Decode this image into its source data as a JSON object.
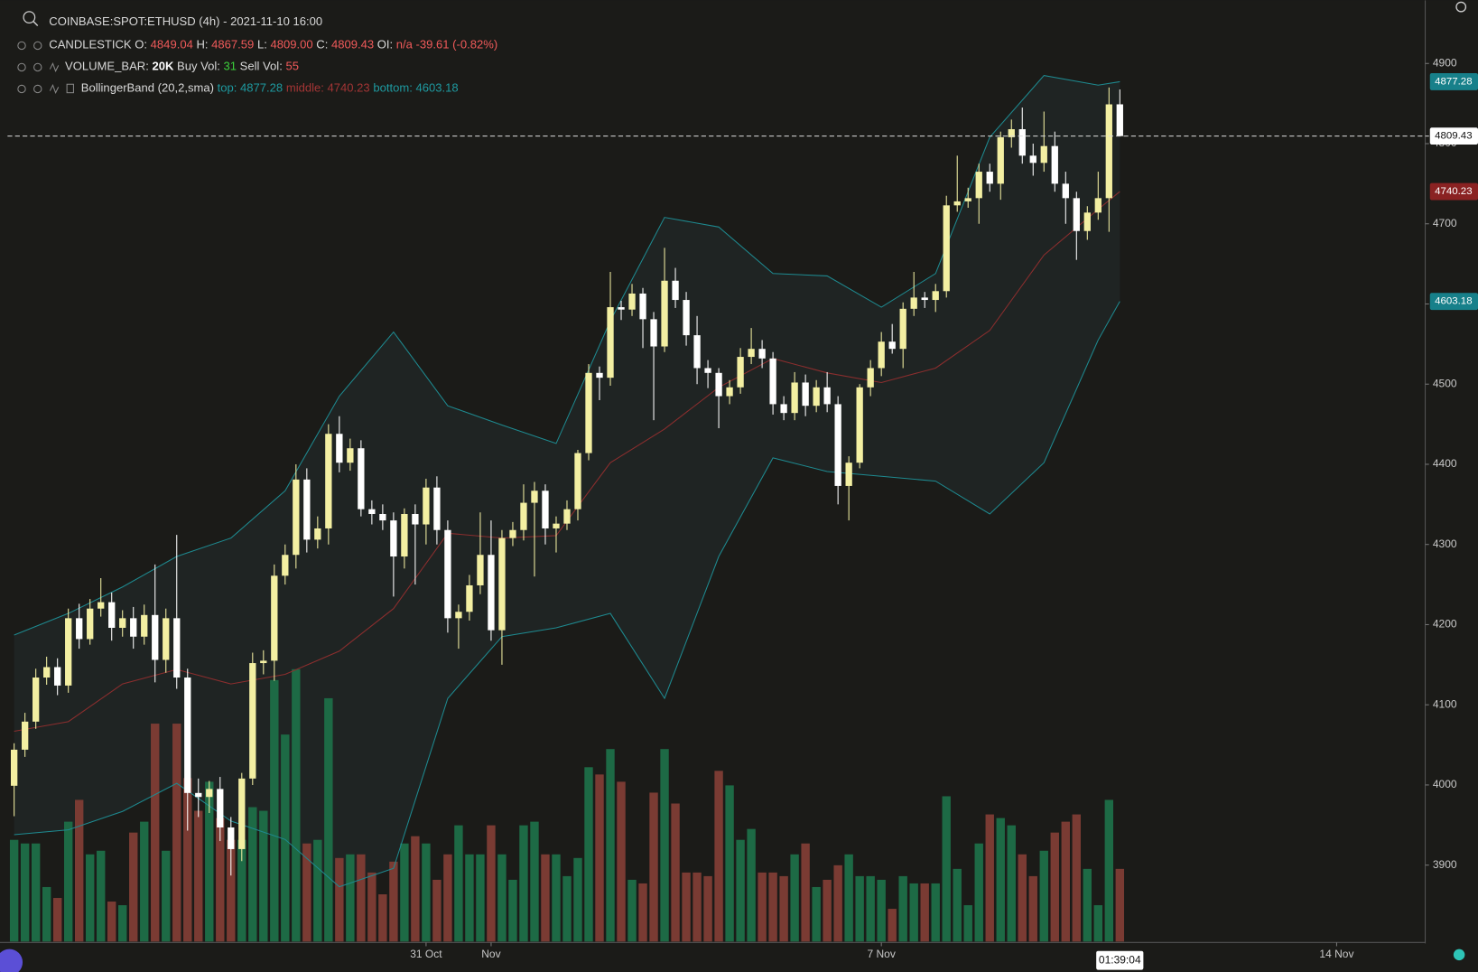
{
  "chart_data": {
    "type": "candlestick",
    "title": "COINBASE:SPOT:ETHUSD (4h) - 2021-11-10 16:00",
    "legend": {
      "candle_name": "CANDLESTICK",
      "o": "O:",
      "h": "H:",
      "l": "L:",
      "l_value": "4809.00",
      "c": "C:",
      "oi": "OI:",
      "oi_value": "n/a",
      "change": "-39.61",
      "change_pct": "(-0.82%)",
      "volume_name": "VOLUME_BAR:",
      "volume_value": "20K",
      "buy": "Buy Vol:",
      "buy_value": "31",
      "sell": "Sell Vol:",
      "sell_value": "55",
      "band_name": "BollingerBand",
      "band_params": "(20,2,sma)",
      "top": "top:",
      "middle": "middle:",
      "bottom": "bottom:"
    },
    "countdown": "01:39:04",
    "up_color": "#f3efa2",
    "down_color": "#ffffff",
    "volume_up_color": "#1d6a45",
    "volume_down_color": "#7a3b33",
    "candles": [
      [
        3999,
        4052,
        3961,
        4044
      ],
      [
        4044,
        4090,
        4035,
        4079
      ],
      [
        4079,
        4145,
        4070,
        4134
      ],
      [
        4134,
        4160,
        4125,
        4147
      ],
      [
        4147,
        4158,
        4112,
        4124
      ],
      [
        4124,
        4220,
        4115,
        4208
      ],
      [
        4208,
        4226,
        4170,
        4182
      ],
      [
        4182,
        4232,
        4175,
        4220
      ],
      [
        4220,
        4258,
        4210,
        4228
      ],
      [
        4228,
        4240,
        4180,
        4196
      ],
      [
        4196,
        4218,
        4185,
        4208
      ],
      [
        4208,
        4222,
        4170,
        4185
      ],
      [
        4185,
        4225,
        4175,
        4212
      ],
      [
        4212,
        4275,
        4128,
        4156
      ],
      [
        4156,
        4220,
        4140,
        4208
      ],
      [
        4208,
        4312,
        4120,
        4134
      ],
      [
        4134,
        4145,
        3943,
        3990
      ],
      [
        3990,
        4008,
        3960,
        3985
      ],
      [
        3985,
        4005,
        3965,
        3995
      ],
      [
        3995,
        4010,
        3930,
        3947
      ],
      [
        3947,
        3960,
        3887,
        3920
      ],
      [
        3920,
        4015,
        3905,
        4008
      ],
      [
        4008,
        4165,
        4000,
        4152
      ],
      [
        4152,
        4168,
        4138,
        4155
      ],
      [
        4155,
        4275,
        4130,
        4261
      ],
      [
        4261,
        4300,
        4250,
        4287
      ],
      [
        4287,
        4400,
        4270,
        4381
      ],
      [
        4381,
        4395,
        4290,
        4306
      ],
      [
        4306,
        4335,
        4295,
        4320
      ],
      [
        4320,
        4450,
        4300,
        4438
      ],
      [
        4438,
        4460,
        4390,
        4402
      ],
      [
        4402,
        4432,
        4392,
        4420
      ],
      [
        4420,
        4430,
        4335,
        4344
      ],
      [
        4344,
        4355,
        4325,
        4338
      ],
      [
        4338,
        4350,
        4318,
        4330
      ],
      [
        4330,
        4340,
        4235,
        4285
      ],
      [
        4285,
        4345,
        4270,
        4338
      ],
      [
        4338,
        4350,
        4250,
        4325
      ],
      [
        4325,
        4382,
        4300,
        4371
      ],
      [
        4371,
        4385,
        4300,
        4318
      ],
      [
        4318,
        4330,
        4190,
        4208
      ],
      [
        4208,
        4225,
        4170,
        4216
      ],
      [
        4216,
        4262,
        4205,
        4249
      ],
      [
        4249,
        4340,
        4238,
        4287
      ],
      [
        4287,
        4330,
        4180,
        4193
      ],
      [
        4193,
        4318,
        4150,
        4308
      ],
      [
        4308,
        4328,
        4298,
        4318
      ],
      [
        4318,
        4375,
        4305,
        4352
      ],
      [
        4352,
        4378,
        4260,
        4367
      ],
      [
        4367,
        4375,
        4300,
        4320
      ],
      [
        4320,
        4335,
        4290,
        4326
      ],
      [
        4326,
        4355,
        4318,
        4344
      ],
      [
        4344,
        4418,
        4330,
        4414
      ],
      [
        4414,
        4525,
        4405,
        4514
      ],
      [
        4514,
        4522,
        4480,
        4508
      ],
      [
        4508,
        4640,
        4498,
        4596
      ],
      [
        4596,
        4604,
        4580,
        4593
      ],
      [
        4593,
        4625,
        4585,
        4613
      ],
      [
        4613,
        4620,
        4545,
        4581
      ],
      [
        4581,
        4590,
        4455,
        4547
      ],
      [
        4547,
        4670,
        4540,
        4629
      ],
      [
        4629,
        4645,
        4595,
        4605
      ],
      [
        4605,
        4615,
        4548,
        4561
      ],
      [
        4561,
        4585,
        4500,
        4520
      ],
      [
        4520,
        4530,
        4495,
        4514
      ],
      [
        4514,
        4520,
        4445,
        4485
      ],
      [
        4485,
        4505,
        4475,
        4496
      ],
      [
        4496,
        4545,
        4488,
        4534
      ],
      [
        4534,
        4570,
        4525,
        4544
      ],
      [
        4544,
        4555,
        4520,
        4532
      ],
      [
        4532,
        4540,
        4462,
        4475
      ],
      [
        4475,
        4485,
        4455,
        4464
      ],
      [
        4464,
        4515,
        4455,
        4502
      ],
      [
        4502,
        4512,
        4460,
        4473
      ],
      [
        4473,
        4505,
        4465,
        4496
      ],
      [
        4496,
        4515,
        4465,
        4475
      ],
      [
        4475,
        4485,
        4350,
        4373
      ],
      [
        4373,
        4410,
        4330,
        4402
      ],
      [
        4402,
        4500,
        4395,
        4496
      ],
      [
        4496,
        4530,
        4485,
        4520
      ],
      [
        4520,
        4565,
        4510,
        4553
      ],
      [
        4553,
        4575,
        4538,
        4544
      ],
      [
        4544,
        4602,
        4520,
        4594
      ],
      [
        4594,
        4640,
        4585,
        4608
      ],
      [
        4608,
        4615,
        4595,
        4605
      ],
      [
        4605,
        4625,
        4590,
        4616
      ],
      [
        4616,
        4735,
        4608,
        4723
      ],
      [
        4723,
        4785,
        4715,
        4728
      ],
      [
        4728,
        4745,
        4720,
        4732
      ],
      [
        4732,
        4775,
        4700,
        4765
      ],
      [
        4765,
        4775,
        4740,
        4750
      ],
      [
        4750,
        4815,
        4730,
        4808
      ],
      [
        4808,
        4830,
        4795,
        4818
      ],
      [
        4818,
        4845,
        4775,
        4785
      ],
      [
        4785,
        4800,
        4760,
        4776
      ],
      [
        4776,
        4840,
        4765,
        4797
      ],
      [
        4797,
        4815,
        4740,
        4750
      ],
      [
        4750,
        4765,
        4700,
        4732
      ],
      [
        4732,
        4740,
        4655,
        4691
      ],
      [
        4691,
        4722,
        4680,
        4714
      ],
      [
        4714,
        4765,
        4705,
        4732
      ],
      [
        4732,
        4870,
        4690,
        4849
      ],
      [
        4849.04,
        4867.59,
        4809.0,
        4809.43
      ]
    ],
    "volume": [
      28,
      27,
      27,
      15,
      12,
      33,
      39,
      24,
      25,
      11,
      10,
      30,
      33,
      60,
      25,
      60,
      45,
      36,
      44,
      34,
      28,
      28,
      37,
      36,
      72,
      57,
      75,
      27,
      28,
      67,
      23,
      24,
      24,
      19,
      13,
      22,
      27,
      29,
      27,
      17,
      24,
      32,
      24,
      24,
      32,
      24,
      17,
      32,
      33,
      24,
      24,
      18,
      23,
      48,
      46,
      53,
      44,
      17,
      16,
      41,
      53,
      38,
      19,
      19,
      18,
      47,
      43,
      28,
      31,
      19,
      19,
      18,
      24,
      27,
      15,
      17,
      21,
      24,
      18,
      18,
      17,
      9,
      18,
      16,
      16,
      16,
      40,
      20,
      10,
      27,
      35,
      34,
      32,
      24,
      18,
      25,
      30,
      33,
      35,
      20,
      10,
      39,
      20
    ],
    "volume_ylim": [
      0,
      259.2
    ],
    "bands": {
      "x": [
        0,
        5,
        10,
        15,
        20,
        25,
        30,
        35,
        40,
        45,
        50,
        55,
        60,
        65,
        70,
        75,
        80,
        85,
        90,
        95,
        100,
        102
      ],
      "top": [
        4187,
        4214,
        4247,
        4285,
        4308,
        4367,
        4485,
        4565,
        4473,
        4449,
        4426,
        4579,
        4708,
        4696,
        4638,
        4635,
        4596,
        4638,
        4808,
        4885,
        4873,
        4877.28
      ],
      "middle": [
        4067,
        4079,
        4126,
        4144,
        4126,
        4138,
        4167,
        4220,
        4314,
        4308,
        4311,
        4402,
        4444,
        4496,
        4532,
        4514,
        4502,
        4520,
        4567,
        4661,
        4718,
        4740.23
      ],
      "bottom": [
        3938,
        3944,
        3967,
        4002,
        3955,
        3932,
        3873,
        3896,
        4108,
        4185,
        4196,
        4214,
        4108,
        4285,
        4408,
        4391,
        4385,
        4379,
        4338,
        4402,
        4555,
        4603.18
      ],
      "top_color": "#1e8a90",
      "middle_color": "#8c2e2e",
      "bottom_color": "#1e8a90",
      "fill": "#1f2423"
    },
    "ylim": [
      3804.7,
      4978.8
    ],
    "yticks": [
      3900,
      4000,
      4100,
      4200,
      4300,
      4400,
      4500,
      4600,
      4700,
      4800,
      4900
    ],
    "xlim": [
      -1.304,
      130.17
    ],
    "xticks": [
      {
        "value": 38,
        "label": "31 Oct"
      },
      {
        "value": 44,
        "label": "Nov"
      },
      {
        "value": 80,
        "label": "7 Nov"
      },
      {
        "value": 122,
        "label": "14 Nov"
      }
    ]
  }
}
